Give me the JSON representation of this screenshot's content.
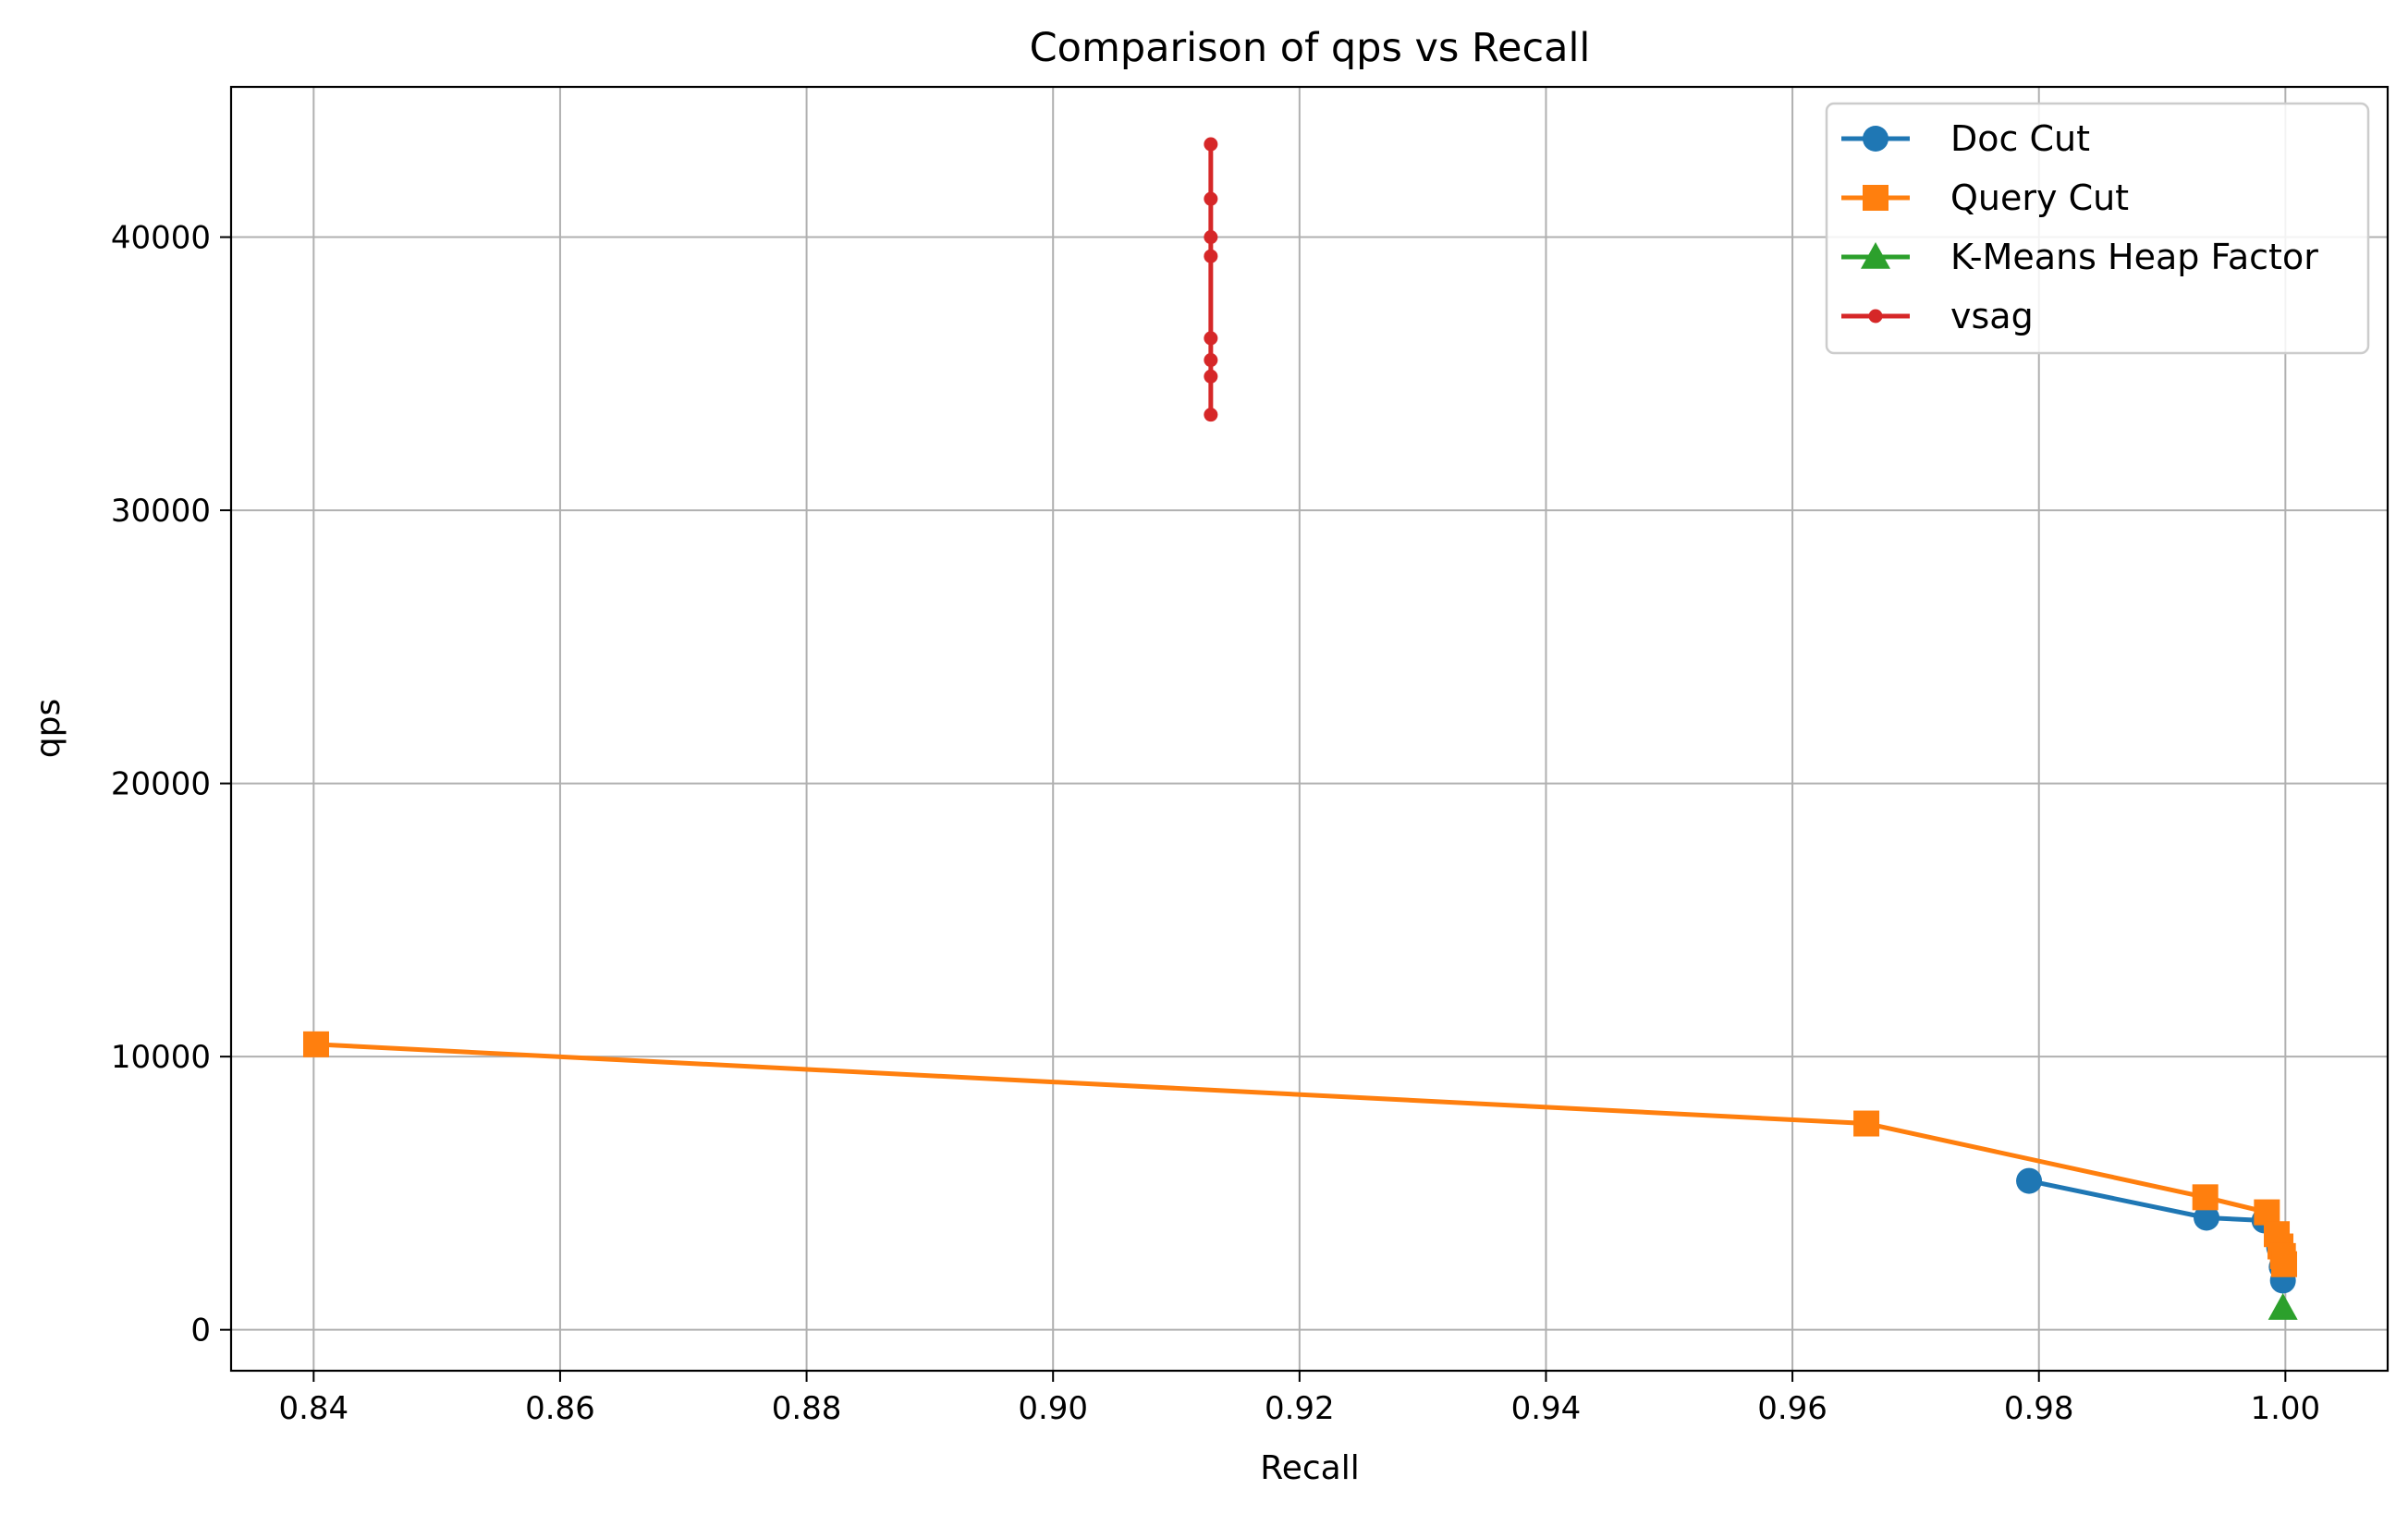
{
  "chart_data": {
    "type": "line",
    "title": "Comparison of qps vs Recall",
    "xlabel": "Recall",
    "ylabel": "qps",
    "xlim": [
      0.8333,
      1.0083
    ],
    "ylim": [
      -1500,
      45500
    ],
    "xticks": [
      0.84,
      0.86,
      0.88,
      0.9,
      0.92,
      0.94,
      0.96,
      0.98,
      1.0
    ],
    "xtick_labels": [
      "0.84",
      "0.86",
      "0.88",
      "0.90",
      "0.92",
      "0.94",
      "0.96",
      "0.98",
      "1.00"
    ],
    "yticks": [
      0,
      10000,
      20000,
      30000,
      40000
    ],
    "ytick_labels": [
      "0",
      "10000",
      "20000",
      "30000",
      "40000"
    ],
    "grid": true,
    "legend_position": "top-right",
    "series": [
      {
        "name": "Doc Cut",
        "color": "#1f77b4",
        "marker": "circle",
        "x": [
          0.9792,
          0.9936,
          0.9983,
          0.9995,
          0.9997,
          0.9998
        ],
        "y": [
          5450,
          4100,
          4000,
          3000,
          2300,
          1800
        ]
      },
      {
        "name": "Query Cut",
        "color": "#ff7f0e",
        "marker": "square",
        "x": [
          0.8402,
          0.966,
          0.9935,
          0.9985,
          0.9993,
          0.9996,
          0.9998,
          0.9999
        ],
        "y": [
          10450,
          7550,
          4850,
          4300,
          3500,
          3050,
          2700,
          2400
        ]
      },
      {
        "name": "K-Means Heap Factor",
        "color": "#2ca02c",
        "marker": "triangle",
        "x": [
          0.9998
        ],
        "y": [
          800
        ]
      },
      {
        "name": "vsag",
        "color": "#d62728",
        "marker": "small-circle",
        "x": [
          0.9128,
          0.9128,
          0.9128,
          0.9128,
          0.9128,
          0.9128,
          0.9128,
          0.9128
        ],
        "y": [
          43400,
          41400,
          40000,
          39300,
          36300,
          35500,
          34900,
          33500
        ]
      }
    ]
  }
}
